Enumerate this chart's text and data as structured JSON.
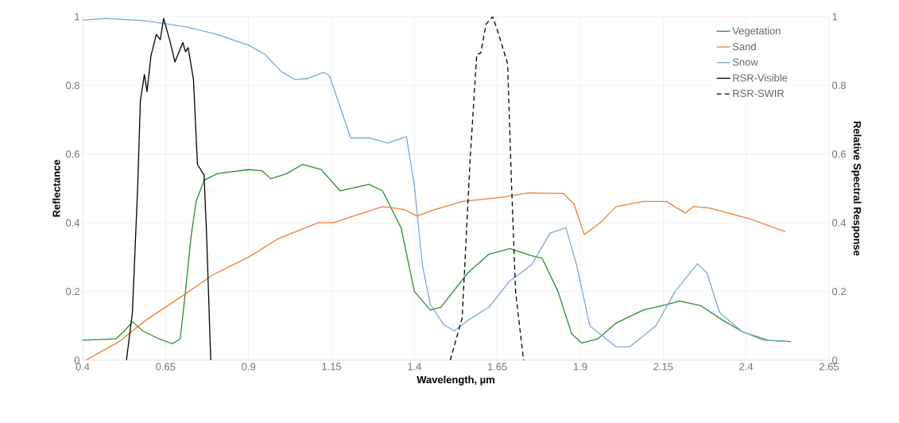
{
  "chart_data": {
    "type": "line",
    "xlabel": "Wavelength, µm",
    "ylabel": "Reflectance",
    "y2label": "Relative Spectral Response",
    "xlim": [
      0.4,
      2.65
    ],
    "xticks": [
      0.4,
      0.65,
      0.9,
      1.15,
      1.4,
      1.65,
      1.9,
      2.15,
      2.4,
      2.65
    ],
    "ylim": [
      0,
      1
    ],
    "yticks": [
      0,
      0.2,
      0.4,
      0.6,
      0.8,
      1
    ],
    "y2lim": [
      0,
      1
    ],
    "y2ticks": [
      0,
      0.2,
      0.4,
      0.6,
      0.8,
      1
    ],
    "grid": true,
    "legend": "top right",
    "series": [
      {
        "name": "Vegetation",
        "color": "#2e8b34",
        "line_style": "solid",
        "x": [
          0.4,
          0.5,
          0.526,
          0.55,
          0.582,
          0.63,
          0.67,
          0.694,
          0.71,
          0.726,
          0.742,
          0.766,
          0.806,
          0.9,
          0.942,
          0.967,
          1.015,
          1.063,
          1.119,
          1.176,
          1.263,
          1.304,
          1.36,
          1.4,
          1.448,
          1.48,
          1.561,
          1.624,
          1.688,
          1.753,
          1.785,
          1.833,
          1.874,
          1.905,
          1.953,
          2.008,
          2.09,
          2.16,
          2.2,
          2.265,
          2.33,
          2.393,
          2.465,
          2.535
        ],
        "values": [
          0.058,
          0.062,
          0.085,
          0.112,
          0.085,
          0.062,
          0.048,
          0.062,
          0.2,
          0.354,
          0.462,
          0.524,
          0.543,
          0.555,
          0.551,
          0.528,
          0.543,
          0.57,
          0.555,
          0.493,
          0.512,
          0.493,
          0.385,
          0.2,
          0.146,
          0.154,
          0.254,
          0.308,
          0.325,
          0.304,
          0.297,
          0.2,
          0.077,
          0.05,
          0.062,
          0.108,
          0.146,
          0.162,
          0.172,
          0.158,
          0.116,
          0.081,
          0.058,
          0.054
        ]
      },
      {
        "name": "Sand",
        "color": "#ed7d31",
        "line_style": "solid",
        "x": [
          0.41,
          0.51,
          0.59,
          0.71,
          0.79,
          0.9,
          0.99,
          1.11,
          1.155,
          1.304,
          1.368,
          1.407,
          1.464,
          1.544,
          1.664,
          1.744,
          1.849,
          1.881,
          1.912,
          1.96,
          2.008,
          2.09,
          2.16,
          2.217,
          2.24,
          2.29,
          2.41,
          2.518
        ],
        "values": [
          0,
          0.054,
          0.116,
          0.193,
          0.247,
          0.3,
          0.354,
          0.4,
          0.4,
          0.447,
          0.439,
          0.42,
          0.439,
          0.462,
          0.474,
          0.487,
          0.485,
          0.455,
          0.366,
          0.4,
          0.447,
          0.462,
          0.462,
          0.428,
          0.447,
          0.443,
          0.412,
          0.374
        ]
      },
      {
        "name": "Snow",
        "color": "#7ba7d8",
        "line_style": "solid",
        "x": [
          0.4,
          0.47,
          0.59,
          0.71,
          0.806,
          0.9,
          0.95,
          0.999,
          1.039,
          1.079,
          1.11,
          1.128,
          1.144,
          1.208,
          1.263,
          1.32,
          1.376,
          1.4,
          1.424,
          1.448,
          1.488,
          1.52,
          1.561,
          1.624,
          1.688,
          1.753,
          1.809,
          1.857,
          1.889,
          1.929,
          2.008,
          2.049,
          2.128,
          2.186,
          2.253,
          2.282,
          2.32,
          2.386,
          2.45,
          2.525
        ],
        "values": [
          0.99,
          0.995,
          0.988,
          0.971,
          0.948,
          0.917,
          0.89,
          0.84,
          0.817,
          0.82,
          0.832,
          0.838,
          0.828,
          0.647,
          0.647,
          0.632,
          0.651,
          0.508,
          0.277,
          0.162,
          0.104,
          0.085,
          0.116,
          0.154,
          0.231,
          0.277,
          0.37,
          0.385,
          0.277,
          0.1,
          0.039,
          0.039,
          0.1,
          0.2,
          0.281,
          0.254,
          0.139,
          0.085,
          0.058,
          0.054
        ]
      },
      {
        "name": "RSR-Visible",
        "color": "#000000",
        "line_style": "solid",
        "axis": "y2",
        "x": [
          0.532,
          0.55,
          0.566,
          0.574,
          0.586,
          0.594,
          0.606,
          0.622,
          0.634,
          0.644,
          0.662,
          0.678,
          0.702,
          0.71,
          0.718,
          0.734,
          0.746,
          0.766,
          0.774,
          0.786
        ],
        "values": [
          0,
          0.139,
          0.508,
          0.755,
          0.832,
          0.782,
          0.887,
          0.948,
          0.933,
          0.995,
          0.933,
          0.868,
          0.925,
          0.898,
          0.91,
          0.817,
          0.57,
          0.539,
          0.354,
          0
        ]
      },
      {
        "name": "RSR-SWIR",
        "color": "#000000",
        "line_style": "dashed",
        "axis": "y2",
        "x": [
          1.508,
          1.544,
          1.568,
          1.588,
          1.6,
          1.616,
          1.636,
          1.652,
          1.681,
          1.693,
          1.705,
          1.729
        ],
        "values": [
          0,
          0.123,
          0.586,
          0.89,
          0.894,
          0.978,
          1.0,
          0.955,
          0.863,
          0.508,
          0.2,
          0
        ]
      }
    ]
  }
}
